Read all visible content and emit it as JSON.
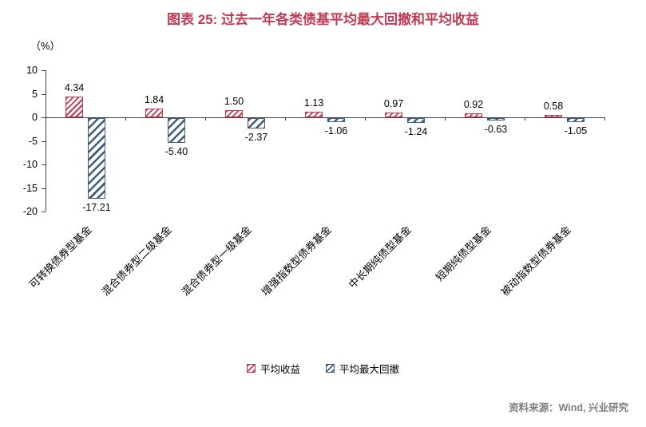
{
  "title": "图表 25: 过去一年各类债基平均最大回撤和平均收益",
  "y_axis": {
    "unit_label": "（%）",
    "tick_labels": [
      "10",
      "5",
      "0",
      "-5",
      "-10",
      "-15",
      "-20"
    ]
  },
  "source_note": "资料来源：Wind, 兴业研究",
  "colors": {
    "title_red": "#c23a54",
    "return_red": "#c23a54",
    "drawdown_blue": "#3f5c7e",
    "axis_black": "#404040",
    "source_gray": "#7f7f7f"
  },
  "chart_data": {
    "type": "bar",
    "title": "图表 25: 过去一年各类债基平均最大回撤和平均收益",
    "xlabel": "",
    "ylabel": "（%）",
    "categories": [
      "可转换债券型基金",
      "混合债券型二级基金",
      "混合债券型一级基金",
      "增强指数型债券基金",
      "中长期纯债型基金",
      "短期纯债型基金",
      "被动指数型债券基金"
    ],
    "series": [
      {
        "name": "平均收益",
        "color": "#c23a54",
        "values": [
          4.34,
          1.84,
          1.5,
          1.13,
          0.97,
          0.92,
          0.58
        ],
        "labels": [
          "4.34",
          "1.84",
          "1.50",
          "1.13",
          "0.97",
          "0.92",
          "0.58"
        ]
      },
      {
        "name": "平均最大回撤",
        "color": "#3f5c7e",
        "values": [
          -17.21,
          -5.4,
          -2.37,
          -1.06,
          -1.24,
          -0.63,
          -1.05
        ],
        "labels": [
          "-17.21",
          "-5.40",
          "-2.37",
          "-1.06",
          "-1.24",
          "-0.63",
          "-1.05"
        ]
      }
    ],
    "ylim": [
      -20,
      10
    ],
    "yticks": [
      10,
      5,
      0,
      -5,
      -10,
      -15,
      -20
    ],
    "grid": false,
    "legend_position": "bottom"
  }
}
